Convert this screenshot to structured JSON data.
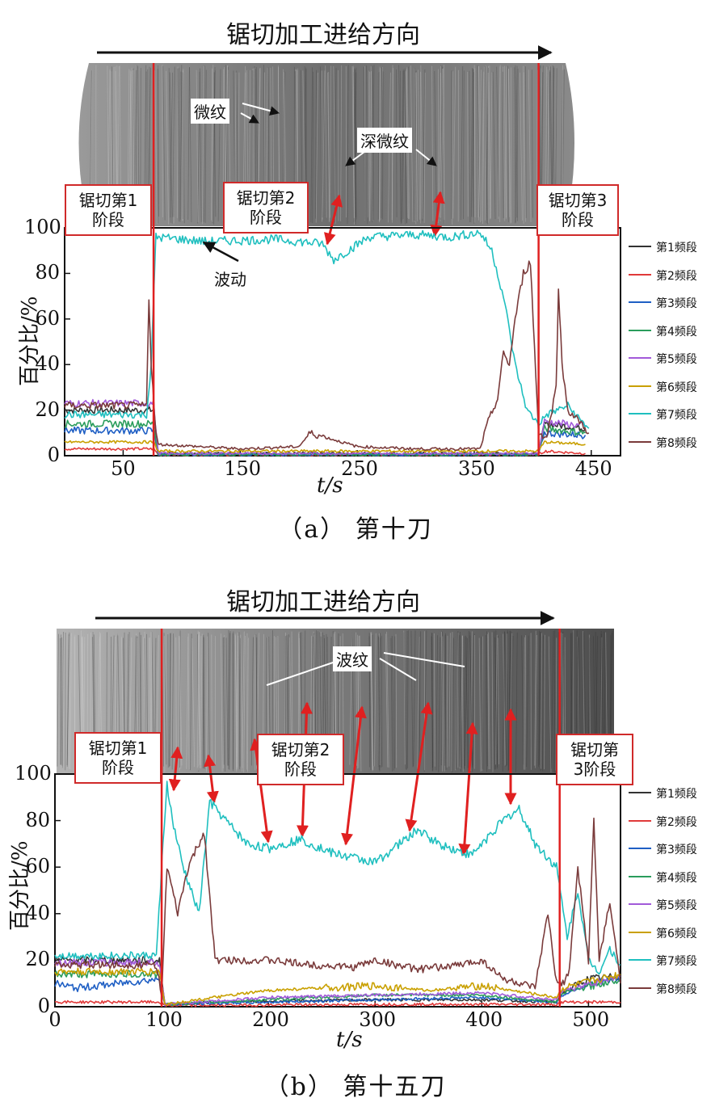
{
  "chart_data": [
    {
      "type": "line",
      "direction_title": "锯切加工进给方向",
      "caption": "（a） 第十刀",
      "xlabel": "t/s",
      "ylabel": "百分比/%",
      "xlim": [
        0,
        475
      ],
      "ylim": [
        0,
        100
      ],
      "x_ticks": [
        50,
        150,
        250,
        350,
        450
      ],
      "y_ticks": [
        0,
        20,
        40,
        60,
        80,
        100
      ],
      "legend_position": "right",
      "stage_boundaries": [
        76,
        405
      ],
      "stages": [
        {
          "label_line1": "锯切第1",
          "label_line2": "阶段"
        },
        {
          "label_line1": "锯切第2",
          "label_line2": "阶段"
        },
        {
          "label_line1": "锯切第3",
          "label_line2": "阶段"
        }
      ],
      "photo_labels": [
        "微纹",
        "深微纹"
      ],
      "annotation": "波动",
      "series": [
        {
          "name": "第1频段",
          "color": "#333333",
          "x": [
            0,
            76,
            80,
            405,
            410,
            445
          ],
          "y": [
            20,
            20,
            1,
            1,
            14,
            12
          ]
        },
        {
          "name": "第2频段",
          "color": "#e03a3a",
          "x": [
            0,
            76,
            80,
            405,
            410,
            445
          ],
          "y": [
            3,
            3,
            0.5,
            0.5,
            2,
            1
          ]
        },
        {
          "name": "第3频段",
          "color": "#1f5fc4",
          "x": [
            0,
            76,
            80,
            405,
            410,
            445
          ],
          "y": [
            11,
            11,
            0.5,
            0.5,
            10,
            9
          ]
        },
        {
          "name": "第4频段",
          "color": "#2a9d5c",
          "x": [
            0,
            76,
            80,
            405,
            410,
            445
          ],
          "y": [
            14,
            14,
            0.5,
            0.5,
            12,
            10
          ]
        },
        {
          "name": "第5频段",
          "color": "#a25ad9",
          "x": [
            0,
            76,
            80,
            405,
            410,
            445
          ],
          "y": [
            23,
            23,
            1,
            1,
            15,
            13
          ]
        },
        {
          "name": "第6频段",
          "color": "#c9a000",
          "x": [
            0,
            76,
            80,
            405,
            410,
            445
          ],
          "y": [
            6,
            6,
            2,
            2,
            6,
            5
          ]
        },
        {
          "name": "第7频段",
          "color": "#1fbfbf",
          "x": [
            0,
            70,
            74,
            78,
            120,
            180,
            220,
            230,
            260,
            300,
            330,
            355,
            365,
            375,
            385,
            395,
            405,
            412,
            430,
            440,
            448
          ],
          "y": [
            18,
            18,
            40,
            96,
            94,
            95,
            93,
            86,
            96,
            97,
            96,
            98,
            90,
            70,
            40,
            20,
            14,
            18,
            22,
            16,
            12
          ]
        },
        {
          "name": "第8频段",
          "color": "#7a3b3b",
          "x": [
            0,
            70,
            72,
            74,
            78,
            80,
            150,
            200,
            210,
            250,
            300,
            355,
            362,
            370,
            375,
            380,
            385,
            392,
            398,
            405,
            412,
            420,
            422,
            425,
            430,
            440,
            448
          ],
          "y": [
            22,
            22,
            70,
            40,
            10,
            5,
            3,
            4,
            10,
            4,
            3,
            3,
            15,
            25,
            45,
            40,
            60,
            80,
            85,
            10,
            8,
            30,
            75,
            40,
            20,
            15,
            10
          ]
        }
      ]
    },
    {
      "type": "line",
      "direction_title": "锯切加工进给方向",
      "caption": "（b） 第十五刀",
      "xlabel": "t/s",
      "ylabel": "百分比/%",
      "xlim": [
        0,
        530
      ],
      "ylim": [
        0,
        100
      ],
      "x_ticks": [
        0,
        100,
        200,
        300,
        400,
        500
      ],
      "y_ticks": [
        0,
        20,
        40,
        60,
        80,
        100
      ],
      "legend_position": "right",
      "stage_boundaries": [
        100,
        473
      ],
      "stages": [
        {
          "label_line1": "锯切第1",
          "label_line2": "阶段"
        },
        {
          "label_line1": "锯切第2",
          "label_line2": "阶段"
        },
        {
          "label_line1": "锯切第",
          "label_line2": "3阶段"
        }
      ],
      "photo_labels": [
        "波纹"
      ],
      "series": [
        {
          "name": "第1频段",
          "color": "#333333",
          "x": [
            0,
            98,
            103,
            150,
            300,
            400,
            470,
            476,
            500,
            530
          ],
          "y": [
            20,
            20,
            1,
            2,
            3,
            3,
            2,
            6,
            12,
            13
          ]
        },
        {
          "name": "第2频段",
          "color": "#e03a3a",
          "x": [
            0,
            98,
            103,
            300,
            470,
            476,
            530
          ],
          "y": [
            2,
            2,
            0.5,
            1,
            1,
            2,
            2
          ]
        },
        {
          "name": "第3频段",
          "color": "#1f5fc4",
          "x": [
            0,
            20,
            60,
            98,
            103,
            200,
            300,
            400,
            470,
            476,
            500,
            530
          ],
          "y": [
            10,
            8,
            10,
            12,
            1,
            2,
            3,
            4,
            2,
            5,
            10,
            12
          ]
        },
        {
          "name": "第4频段",
          "color": "#2a9d5c",
          "x": [
            0,
            98,
            103,
            200,
            300,
            400,
            470,
            476,
            530
          ],
          "y": [
            14,
            14,
            1,
            3,
            5,
            5,
            2,
            6,
            12
          ]
        },
        {
          "name": "第5频段",
          "color": "#a25ad9",
          "x": [
            0,
            98,
            103,
            200,
            300,
            400,
            470,
            476,
            530
          ],
          "y": [
            19,
            19,
            1,
            4,
            5,
            6,
            3,
            7,
            13
          ]
        },
        {
          "name": "第6频段",
          "color": "#c9a000",
          "x": [
            0,
            98,
            103,
            150,
            200,
            300,
            350,
            400,
            470,
            476,
            530
          ],
          "y": [
            15,
            15,
            1,
            4,
            7,
            9,
            7,
            9,
            4,
            8,
            14
          ]
        },
        {
          "name": "第7频段",
          "color": "#1fbfbf",
          "x": [
            0,
            95,
            100,
            105,
            110,
            120,
            135,
            145,
            160,
            180,
            200,
            230,
            260,
            300,
            340,
            360,
            390,
            420,
            435,
            450,
            470,
            480,
            490,
            500,
            510,
            520,
            530
          ],
          "y": [
            22,
            22,
            60,
            96,
            80,
            60,
            40,
            88,
            80,
            70,
            68,
            72,
            66,
            62,
            76,
            70,
            65,
            80,
            85,
            70,
            60,
            30,
            50,
            20,
            15,
            25,
            18
          ]
        },
        {
          "name": "第8频段",
          "color": "#7a3b3b",
          "x": [
            0,
            95,
            100,
            105,
            115,
            125,
            140,
            150,
            170,
            200,
            240,
            280,
            300,
            340,
            380,
            400,
            420,
            450,
            462,
            470,
            476,
            482,
            490,
            500,
            505,
            510,
            520,
            530
          ],
          "y": [
            18,
            18,
            5,
            60,
            40,
            60,
            75,
            20,
            20,
            20,
            18,
            17,
            20,
            16,
            18,
            20,
            12,
            8,
            40,
            10,
            10,
            15,
            60,
            20,
            80,
            20,
            45,
            10
          ]
        }
      ]
    }
  ]
}
